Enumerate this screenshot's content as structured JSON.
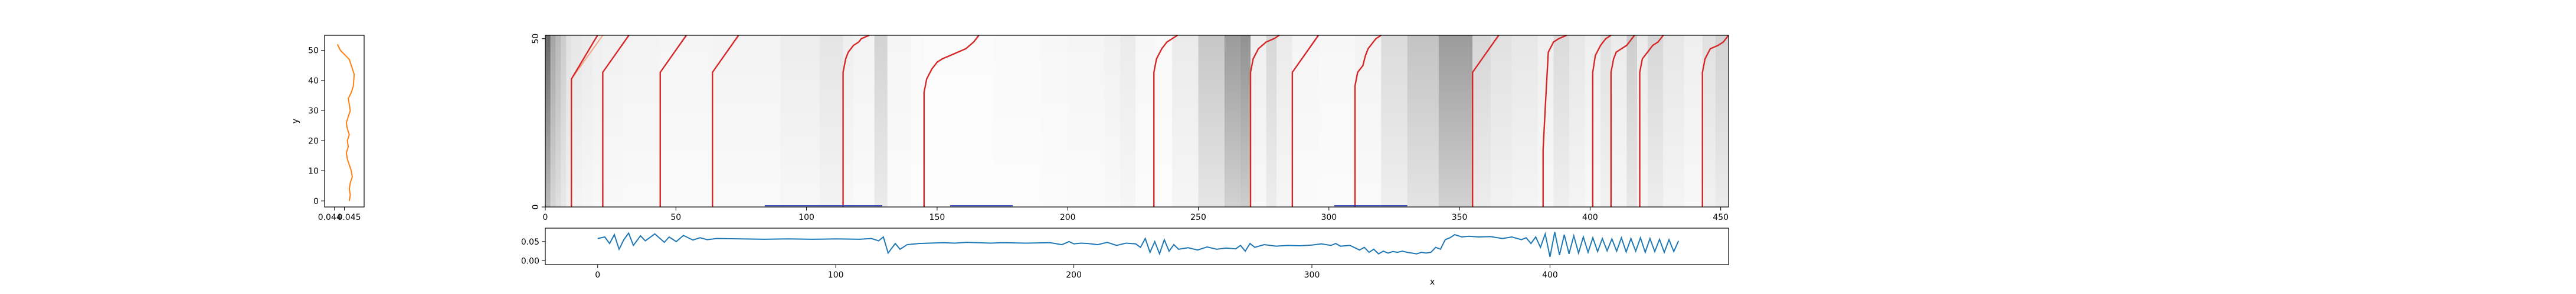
{
  "chart_data": [
    {
      "panel": "left-profile",
      "type": "line",
      "ylabel": "y",
      "xlim": [
        0.043,
        0.047
      ],
      "ylim": [
        -2,
        55
      ],
      "xticks": [
        {
          "v": 0.044,
          "label": "0.044"
        },
        {
          "v": 0.045,
          "label": "0.045"
        }
      ],
      "yticks": [
        0,
        10,
        20,
        30,
        40,
        50
      ],
      "series": [
        {
          "color": "#ff7f0e",
          "x": [
            0.0455,
            0.0456,
            0.0455,
            0.0456,
            0.0458,
            0.0457,
            0.0455,
            0.0453,
            0.0452,
            0.0454,
            0.0453,
            0.0455,
            0.0453,
            0.0452,
            0.0454,
            0.0456,
            0.0455,
            0.0454,
            0.0457,
            0.0459,
            0.046,
            0.0455,
            0.0446,
            0.0443
          ],
          "y": [
            0,
            2,
            4,
            6,
            8,
            10,
            12,
            14,
            16,
            18,
            20,
            22,
            24,
            26,
            28,
            30,
            32,
            34,
            36,
            38,
            42,
            47,
            50,
            52
          ]
        }
      ]
    },
    {
      "panel": "heatmap",
      "type": "heatmap",
      "xlim": [
        0,
        453
      ],
      "ylim": [
        0,
        51
      ],
      "xticks": [
        0,
        50,
        100,
        150,
        200,
        250,
        300,
        350,
        400,
        450
      ],
      "yticks": [
        0,
        50
      ],
      "colormap": "greys",
      "red_curves": [
        {
          "x": [
            10,
            10,
            20
          ],
          "y": [
            0,
            38,
            51
          ]
        },
        {
          "x": [
            22,
            22,
            32
          ],
          "y": [
            0,
            40,
            51
          ]
        },
        {
          "x": [
            44,
            44,
            54
          ],
          "y": [
            0,
            40,
            51
          ]
        },
        {
          "x": [
            64,
            64,
            74
          ],
          "y": [
            0,
            40,
            51
          ]
        },
        {
          "x": [
            114,
            114,
            115,
            116,
            118,
            120,
            121,
            124
          ],
          "y": [
            0,
            40,
            44,
            46,
            48,
            49,
            50,
            51
          ]
        },
        {
          "x": [
            145,
            145,
            146,
            148,
            150,
            152,
            155,
            158,
            161,
            164,
            166
          ],
          "y": [
            0,
            34,
            38,
            41,
            43,
            44,
            45,
            46,
            47,
            49,
            51
          ]
        },
        {
          "x": [
            233,
            233,
            234,
            236,
            238,
            240,
            242
          ],
          "y": [
            0,
            40,
            44,
            47,
            49,
            50,
            51
          ]
        },
        {
          "x": [
            270,
            270,
            271,
            273,
            276,
            279,
            281
          ],
          "y": [
            0,
            40,
            44,
            47,
            49,
            50,
            51
          ]
        },
        {
          "x": [
            286,
            286,
            296
          ],
          "y": [
            0,
            40,
            51
          ]
        },
        {
          "x": [
            310,
            310,
            311,
            313,
            314,
            315,
            317,
            318,
            320
          ],
          "y": [
            0,
            36,
            40,
            42,
            45,
            47,
            49,
            50,
            51
          ]
        },
        {
          "x": [
            355,
            355,
            365
          ],
          "y": [
            0,
            40,
            51
          ]
        },
        {
          "x": [
            382,
            382,
            383,
            384,
            386,
            388,
            391
          ],
          "y": [
            0,
            17,
            32,
            46,
            49,
            50,
            51
          ]
        },
        {
          "x": [
            401,
            401,
            402,
            404,
            406,
            408
          ],
          "y": [
            0,
            40,
            45,
            48,
            50,
            51
          ]
        },
        {
          "x": [
            408,
            408,
            409,
            410,
            412,
            414,
            416,
            417
          ],
          "y": [
            0,
            40,
            44,
            46,
            47,
            48,
            50,
            51
          ]
        },
        {
          "x": [
            419,
            419,
            420,
            422,
            424,
            426,
            428
          ],
          "y": [
            0,
            40,
            44,
            46,
            48,
            49,
            51
          ]
        },
        {
          "x": [
            443,
            443,
            444,
            446,
            449,
            451,
            453
          ],
          "y": [
            0,
            40,
            44,
            47,
            48,
            49,
            51
          ]
        }
      ],
      "blue_segments": [
        {
          "x": [
            84,
            129
          ],
          "y": [
            0,
            0
          ]
        },
        {
          "x": [
            155,
            179
          ],
          "y": [
            0,
            0
          ]
        },
        {
          "x": [
            302,
            330
          ],
          "y": [
            0,
            0
          ]
        }
      ],
      "light_red_lines": [
        {
          "x": [
            10,
            10,
            22
          ],
          "y": [
            0,
            38,
            51
          ]
        },
        {
          "x": [
            355,
            355,
            365
          ],
          "y": [
            0,
            40,
            51
          ]
        }
      ]
    },
    {
      "panel": "bottom-signal",
      "type": "line",
      "xlabel": "x",
      "xlim": [
        -22,
        475
      ],
      "ylim": [
        -0.01,
        0.085
      ],
      "xticks": [
        0,
        100,
        200,
        300,
        400
      ],
      "yticks": [
        {
          "v": 0.0,
          "label": "0.00"
        },
        {
          "v": 0.05,
          "label": "0.05"
        }
      ],
      "series": [
        {
          "color": "#1f77b4",
          "x": [
            0,
            3,
            5,
            7,
            9,
            11,
            13,
            15,
            18,
            20,
            24,
            28,
            30,
            33,
            36,
            40,
            43,
            46,
            50,
            60,
            70,
            80,
            90,
            100,
            110,
            115,
            118,
            120,
            122,
            125,
            127,
            130,
            135,
            145,
            150,
            155,
            160,
            165,
            170,
            180,
            190,
            195,
            198,
            200,
            203,
            206,
            210,
            214,
            218,
            222,
            226,
            228,
            230,
            232,
            234,
            236,
            238,
            240,
            242,
            244,
            248,
            252,
            256,
            260,
            264,
            268,
            270,
            272,
            274,
            276,
            280,
            285,
            290,
            295,
            300,
            304,
            308,
            310,
            312,
            316,
            320,
            322,
            324,
            326,
            328,
            330,
            332,
            334,
            336,
            338,
            340,
            342,
            344,
            346,
            348,
            350,
            352,
            354,
            356,
            358,
            360,
            363,
            366,
            370,
            375,
            380,
            384,
            388,
            390,
            392,
            394,
            396,
            398,
            400,
            402,
            404,
            406,
            408,
            410,
            412,
            414,
            416,
            418,
            420,
            422,
            424,
            426,
            428,
            430,
            432,
            434,
            436,
            438,
            440,
            442,
            444,
            446,
            448,
            450,
            452,
            454
          ],
          "y": [
            0.058,
            0.062,
            0.045,
            0.068,
            0.03,
            0.055,
            0.072,
            0.04,
            0.065,
            0.052,
            0.07,
            0.048,
            0.062,
            0.05,
            0.066,
            0.054,
            0.06,
            0.055,
            0.058,
            0.057,
            0.056,
            0.057,
            0.056,
            0.057,
            0.056,
            0.058,
            0.052,
            0.062,
            0.02,
            0.045,
            0.03,
            0.042,
            0.045,
            0.047,
            0.046,
            0.048,
            0.047,
            0.046,
            0.047,
            0.046,
            0.047,
            0.042,
            0.05,
            0.044,
            0.046,
            0.045,
            0.042,
            0.048,
            0.04,
            0.046,
            0.044,
            0.035,
            0.058,
            0.022,
            0.05,
            0.018,
            0.055,
            0.025,
            0.042,
            0.03,
            0.034,
            0.028,
            0.036,
            0.03,
            0.033,
            0.031,
            0.04,
            0.025,
            0.045,
            0.035,
            0.042,
            0.038,
            0.04,
            0.039,
            0.041,
            0.044,
            0.04,
            0.045,
            0.038,
            0.04,
            0.028,
            0.035,
            0.022,
            0.03,
            0.018,
            0.025,
            0.02,
            0.024,
            0.022,
            0.025,
            0.022,
            0.02,
            0.018,
            0.022,
            0.02,
            0.022,
            0.035,
            0.03,
            0.055,
            0.06,
            0.068,
            0.062,
            0.064,
            0.062,
            0.063,
            0.058,
            0.062,
            0.055,
            0.06,
            0.045,
            0.062,
            0.035,
            0.07,
            0.01,
            0.075,
            0.015,
            0.068,
            0.018,
            0.065,
            0.02,
            0.062,
            0.022,
            0.06,
            0.024,
            0.058,
            0.026,
            0.057,
            0.025,
            0.06,
            0.023,
            0.058,
            0.025,
            0.06,
            0.022,
            0.058,
            0.024,
            0.056,
            0.022,
            0.055,
            0.024,
            0.052
          ]
        }
      ]
    }
  ]
}
